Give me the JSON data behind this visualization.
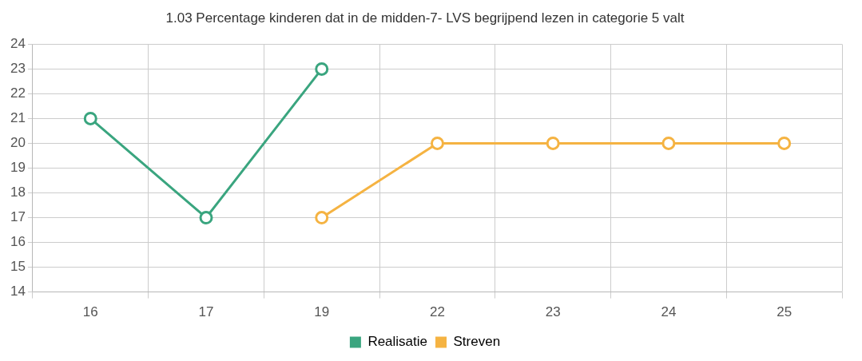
{
  "chart_data": {
    "type": "line",
    "title": "1.03 Percentage kinderen dat in de midden-7- LVS begrijpend lezen in categorie 5 valt",
    "categories": [
      "16",
      "17",
      "19",
      "22",
      "23",
      "24",
      "25"
    ],
    "series": [
      {
        "name": "Realisatie",
        "color": "#3aa57f",
        "values": [
          21,
          17,
          23,
          null,
          null,
          null,
          null
        ]
      },
      {
        "name": "Streven",
        "color": "#f5b342",
        "values": [
          null,
          null,
          17,
          20,
          20,
          20,
          20
        ]
      }
    ],
    "ylim": [
      14,
      24
    ],
    "yticks": [
      14,
      15,
      16,
      17,
      18,
      19,
      20,
      21,
      22,
      23,
      24
    ],
    "grid": true,
    "legend": "bottom",
    "marker": "circle",
    "line_style": "solid"
  }
}
